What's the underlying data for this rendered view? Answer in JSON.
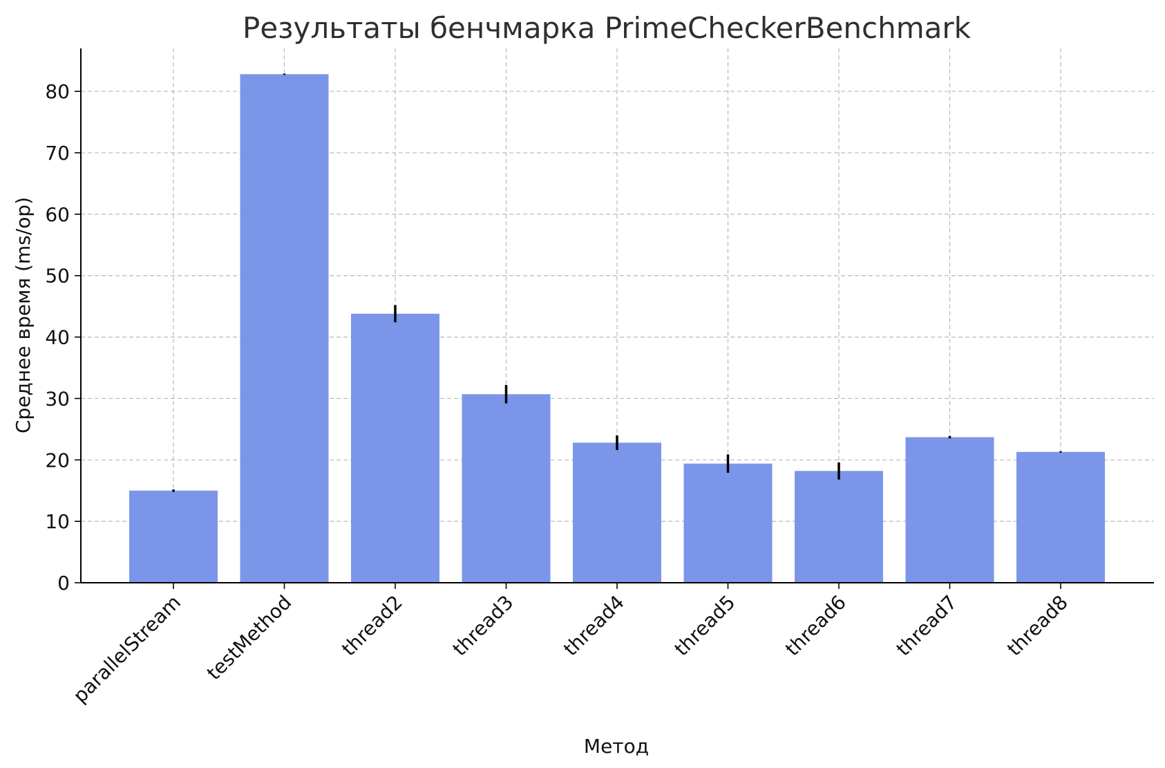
{
  "chart_data": {
    "type": "bar",
    "title": "Результаты бенчмарка PrimeCheckerBenchmark",
    "xlabel": "Метод",
    "ylabel": "Среднее время (ms/op)",
    "categories": [
      "parallelStream",
      "testMethod",
      "thread2",
      "thread3",
      "thread4",
      "thread5",
      "thread6",
      "thread7",
      "thread8"
    ],
    "values": [
      15.0,
      82.8,
      43.8,
      30.7,
      22.8,
      19.4,
      18.2,
      23.7,
      21.3
    ],
    "errors": [
      0.2,
      0.1,
      1.4,
      1.5,
      1.2,
      1.5,
      1.4,
      0.2,
      0.1
    ],
    "ylim": [
      0,
      87
    ],
    "yticks": [
      0,
      10,
      20,
      30,
      40,
      50,
      60,
      70,
      80
    ],
    "grid": true,
    "bar_color": "#7b96e8",
    "error_color": "#000000"
  }
}
